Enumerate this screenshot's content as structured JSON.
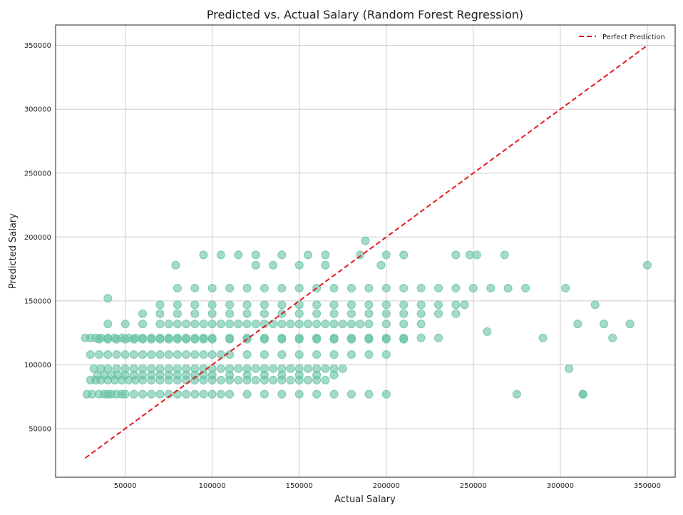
{
  "chart_data": {
    "type": "scatter",
    "title": "Predicted vs. Actual Salary (Random Forest Regression)",
    "xlabel": "Actual Salary",
    "ylabel": "Predicted Salary",
    "xlim": [
      10000,
      366000
    ],
    "ylim": [
      12000,
      366000
    ],
    "x_ticks": [
      50000,
      100000,
      150000,
      200000,
      250000,
      300000,
      350000
    ],
    "y_ticks": [
      50000,
      100000,
      150000,
      200000,
      250000,
      300000,
      350000
    ],
    "grid": true,
    "legend_position": "top-right",
    "colors": {
      "points": "#66c2a5",
      "reference_line": "#e41a1c"
    },
    "reference_line": {
      "name": "Perfect Prediction",
      "x": [
        27000,
        350000
      ],
      "y": [
        27000,
        350000
      ],
      "style": "dashed"
    },
    "points_series": {
      "x": [
        28000,
        31000,
        35000,
        38000,
        40000,
        42000,
        45000,
        48000,
        50000,
        55000,
        60000,
        65000,
        70000,
        75000,
        80000,
        85000,
        90000,
        95000,
        100000,
        105000,
        110000,
        120000,
        130000,
        140000,
        150000,
        160000,
        170000,
        180000,
        190000,
        200000,
        30000,
        33000,
        36000,
        40000,
        44000,
        48000,
        52000,
        56000,
        60000,
        65000,
        70000,
        75000,
        80000,
        85000,
        90000,
        95000,
        100000,
        105000,
        110000,
        115000,
        120000,
        125000,
        130000,
        135000,
        140000,
        145000,
        150000,
        155000,
        160000,
        165000,
        32000,
        36000,
        40000,
        45000,
        50000,
        55000,
        60000,
        65000,
        70000,
        75000,
        80000,
        85000,
        90000,
        95000,
        100000,
        105000,
        110000,
        115000,
        120000,
        125000,
        130000,
        135000,
        140000,
        145000,
        150000,
        155000,
        160000,
        165000,
        170000,
        175000,
        34000,
        38000,
        42000,
        46000,
        50000,
        55000,
        60000,
        65000,
        70000,
        75000,
        80000,
        85000,
        90000,
        95000,
        100000,
        110000,
        120000,
        130000,
        140000,
        150000,
        160000,
        170000,
        30000,
        35000,
        40000,
        45000,
        50000,
        55000,
        60000,
        65000,
        70000,
        75000,
        80000,
        85000,
        90000,
        95000,
        100000,
        105000,
        110000,
        120000,
        130000,
        140000,
        150000,
        160000,
        170000,
        180000,
        190000,
        200000,
        35000,
        40000,
        45000,
        50000,
        55000,
        60000,
        65000,
        70000,
        75000,
        80000,
        85000,
        90000,
        95000,
        100000,
        110000,
        120000,
        130000,
        140000,
        150000,
        160000,
        170000,
        180000,
        190000,
        200000,
        210000,
        27000,
        30000,
        33000,
        36000,
        40000,
        44000,
        48000,
        52000,
        56000,
        60000,
        65000,
        70000,
        75000,
        80000,
        85000,
        90000,
        95000,
        100000,
        110000,
        120000,
        130000,
        140000,
        150000,
        160000,
        170000,
        180000,
        190000,
        200000,
        210000,
        220000,
        230000,
        40000,
        50000,
        60000,
        70000,
        75000,
        80000,
        85000,
        90000,
        95000,
        100000,
        105000,
        110000,
        115000,
        120000,
        125000,
        130000,
        135000,
        140000,
        145000,
        150000,
        155000,
        160000,
        165000,
        170000,
        175000,
        180000,
        185000,
        190000,
        200000,
        210000,
        220000,
        60000,
        70000,
        80000,
        90000,
        100000,
        110000,
        120000,
        130000,
        140000,
        150000,
        160000,
        170000,
        180000,
        190000,
        200000,
        210000,
        220000,
        230000,
        240000,
        70000,
        80000,
        90000,
        100000,
        110000,
        120000,
        130000,
        140000,
        150000,
        160000,
        170000,
        180000,
        190000,
        200000,
        210000,
        220000,
        230000,
        240000,
        245000,
        80000,
        90000,
        100000,
        110000,
        120000,
        130000,
        140000,
        150000,
        160000,
        170000,
        180000,
        190000,
        200000,
        210000,
        220000,
        230000,
        240000,
        250000,
        260000,
        270000,
        280000,
        95000,
        105000,
        115000,
        125000,
        140000,
        155000,
        165000,
        185000,
        200000,
        210000,
        240000,
        248000,
        252000,
        268000,
        40000,
        188000,
        79000,
        125000,
        135000,
        150000,
        165000,
        197000,
        258000,
        290000,
        303000,
        310000,
        313000,
        320000,
        325000,
        330000,
        340000,
        350000,
        275000,
        305000,
        313000
      ],
      "y": [
        77000,
        77000,
        77000,
        77000,
        77000,
        77000,
        77000,
        77000,
        77000,
        77000,
        77000,
        77000,
        77000,
        77000,
        77000,
        77000,
        77000,
        77000,
        77000,
        77000,
        77000,
        77000,
        77000,
        77000,
        77000,
        77000,
        77000,
        77000,
        77000,
        77000,
        88000,
        88000,
        88000,
        88000,
        88000,
        88000,
        88000,
        88000,
        88000,
        88000,
        88000,
        88000,
        88000,
        88000,
        88000,
        88000,
        88000,
        88000,
        88000,
        88000,
        88000,
        88000,
        88000,
        88000,
        88000,
        88000,
        88000,
        88000,
        88000,
        88000,
        97000,
        97000,
        97000,
        97000,
        97000,
        97000,
        97000,
        97000,
        97000,
        97000,
        97000,
        97000,
        97000,
        97000,
        97000,
        97000,
        97000,
        97000,
        97000,
        97000,
        97000,
        97000,
        97000,
        97000,
        97000,
        97000,
        97000,
        97000,
        97000,
        97000,
        92000,
        92000,
        92000,
        92000,
        92000,
        92000,
        92000,
        92000,
        92000,
        92000,
        92000,
        92000,
        92000,
        92000,
        92000,
        92000,
        92000,
        92000,
        92000,
        92000,
        92000,
        92000,
        108000,
        108000,
        108000,
        108000,
        108000,
        108000,
        108000,
        108000,
        108000,
        108000,
        108000,
        108000,
        108000,
        108000,
        108000,
        108000,
        108000,
        108000,
        108000,
        108000,
        108000,
        108000,
        108000,
        108000,
        108000,
        108000,
        120000,
        120000,
        120000,
        120000,
        120000,
        120000,
        120000,
        120000,
        120000,
        120000,
        120000,
        120000,
        120000,
        120000,
        120000,
        120000,
        120000,
        120000,
        120000,
        120000,
        120000,
        120000,
        120000,
        120000,
        120000,
        121000,
        121000,
        121000,
        121000,
        121000,
        121000,
        121000,
        121000,
        121000,
        121000,
        121000,
        121000,
        121000,
        121000,
        121000,
        121000,
        121000,
        121000,
        121000,
        121000,
        121000,
        121000,
        121000,
        121000,
        121000,
        121000,
        121000,
        121000,
        121000,
        121000,
        121000,
        132000,
        132000,
        132000,
        132000,
        132000,
        132000,
        132000,
        132000,
        132000,
        132000,
        132000,
        132000,
        132000,
        132000,
        132000,
        132000,
        132000,
        132000,
        132000,
        132000,
        132000,
        132000,
        132000,
        132000,
        132000,
        132000,
        132000,
        132000,
        132000,
        132000,
        132000,
        140000,
        140000,
        140000,
        140000,
        140000,
        140000,
        140000,
        140000,
        140000,
        140000,
        140000,
        140000,
        140000,
        140000,
        140000,
        140000,
        140000,
        140000,
        140000,
        147000,
        147000,
        147000,
        147000,
        147000,
        147000,
        147000,
        147000,
        147000,
        147000,
        147000,
        147000,
        147000,
        147000,
        147000,
        147000,
        147000,
        147000,
        147000,
        160000,
        160000,
        160000,
        160000,
        160000,
        160000,
        160000,
        160000,
        160000,
        160000,
        160000,
        160000,
        160000,
        160000,
        160000,
        160000,
        160000,
        160000,
        160000,
        160000,
        160000,
        186000,
        186000,
        186000,
        186000,
        186000,
        186000,
        186000,
        186000,
        186000,
        186000,
        186000,
        186000,
        186000,
        186000,
        152000,
        197000,
        178000,
        178000,
        178000,
        178000,
        178000,
        178000,
        126000,
        121000,
        160000,
        132000,
        77000,
        147000,
        132000,
        121000,
        132000,
        178000,
        77000,
        97000,
        77000
      ]
    }
  }
}
